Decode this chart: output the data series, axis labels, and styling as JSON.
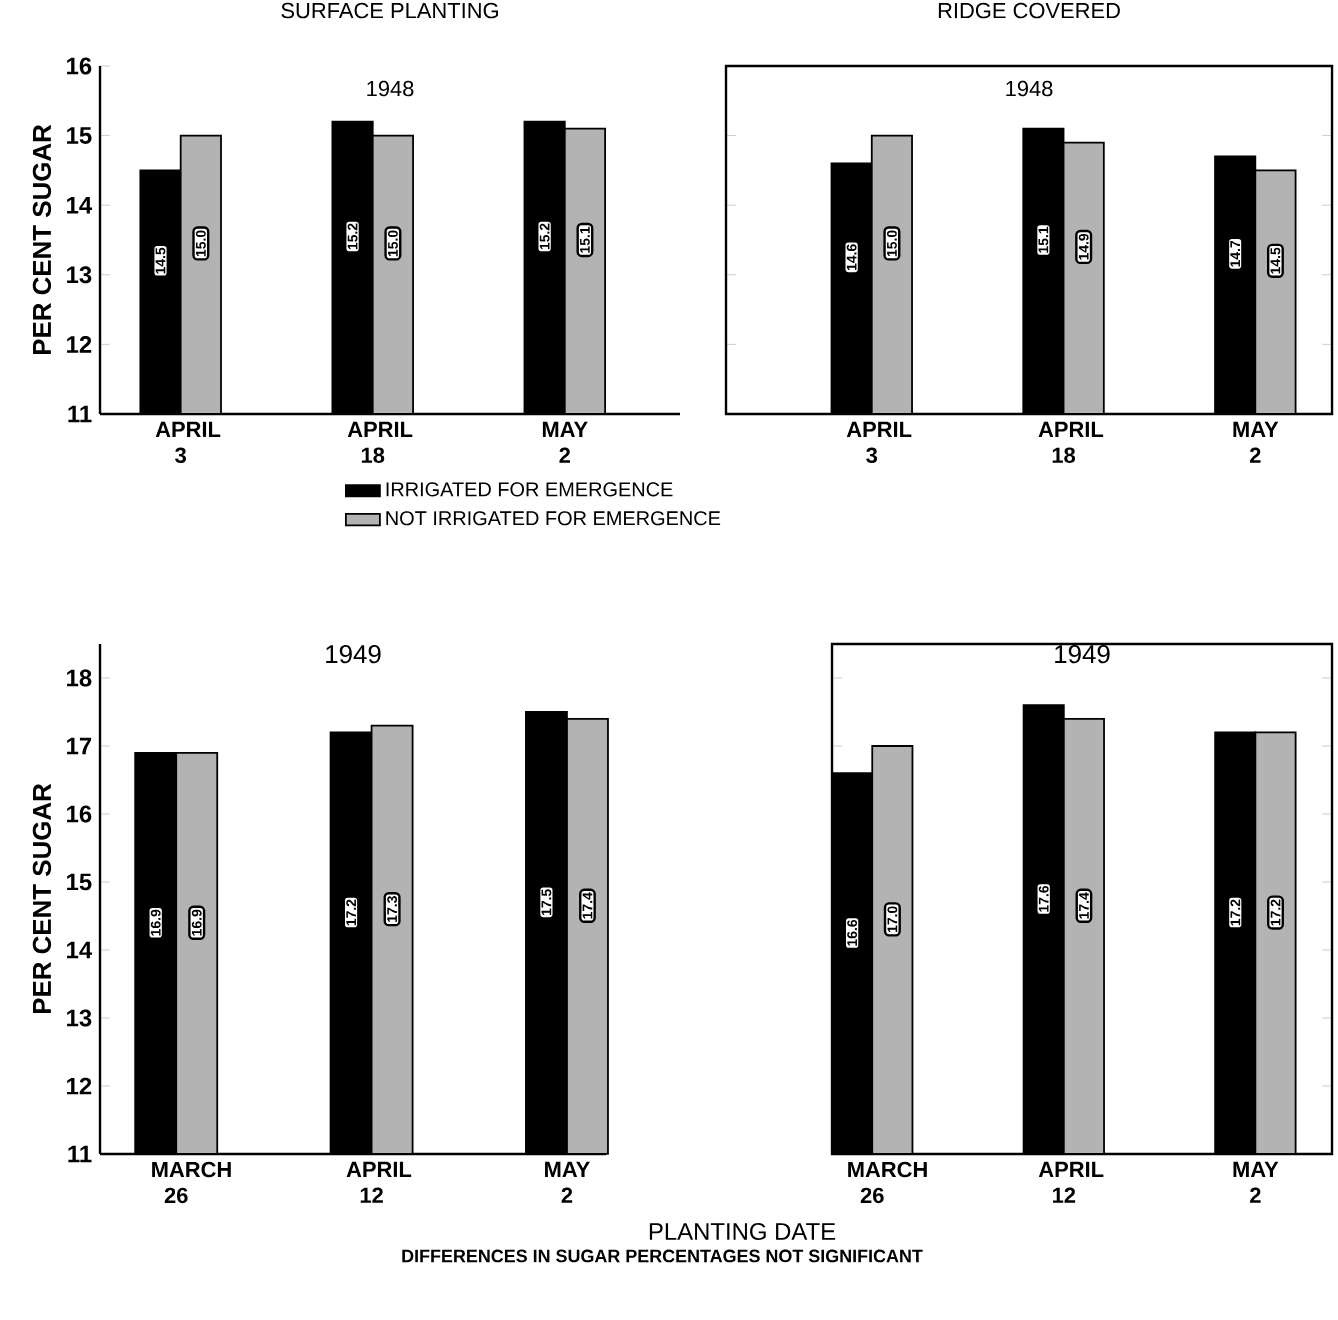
{
  "chart_data": [
    {
      "type": "bar",
      "title": "SURFACE PLANTING",
      "subtitle": "1948",
      "ylabel": "PER CENT SUGAR",
      "categories": [
        "APRIL 3",
        "APRIL 18",
        "MAY 2"
      ],
      "ylim": [
        11,
        16
      ],
      "yticks": [
        11,
        12,
        13,
        14,
        15,
        16
      ],
      "legend": "bottom",
      "series": [
        {
          "name": "IRRIGATED FOR EMERGENCE",
          "color": "#000000",
          "values": [
            14.5,
            15.2,
            15.2
          ],
          "value_labels": [
            "14.5",
            "15.2",
            "15.2"
          ]
        },
        {
          "name": "NOT IRRIGATED FOR EMERGENCE",
          "color": "#b3b3b3",
          "values": [
            15.0,
            15.0,
            15.1
          ],
          "value_labels": [
            "15.0",
            "15.0",
            "15.1"
          ]
        }
      ]
    },
    {
      "type": "bar",
      "title": "RIDGE COVERED",
      "subtitle": "1948",
      "categories": [
        "APRIL 3",
        "APRIL 18",
        "MAY 2"
      ],
      "ylim": [
        11,
        16
      ],
      "yticks": [
        11,
        12,
        13,
        14,
        15,
        16
      ],
      "tick_labels": "x",
      "series": [
        {
          "color": "#000000",
          "values": [
            14.6,
            15.1,
            14.7
          ],
          "value_labels": [
            "14.6",
            "15.1",
            "14.7"
          ]
        },
        {
          "color": "#b3b3b3",
          "values": [
            15.0,
            14.9,
            14.5
          ],
          "value_labels": [
            "15.0",
            "14.9",
            "14.5"
          ]
        }
      ]
    },
    {
      "type": "bar",
      "title": "1949",
      "ylabel": "PER CENT SUGAR",
      "categories": [
        "MARCH 26",
        "APRIL 12",
        "MAY 2"
      ],
      "ylim": [
        11,
        18.5
      ],
      "yticks": [
        11,
        12,
        13,
        14,
        15,
        16,
        17,
        18
      ],
      "series": [
        {
          "color": "#000000",
          "values": [
            16.9,
            17.2,
            17.5
          ],
          "value_labels": [
            "16.9",
            "17.2",
            "17.5"
          ]
        },
        {
          "color": "#b3b3b3",
          "values": [
            16.9,
            17.3,
            17.4
          ],
          "value_labels": [
            "16.9",
            "17.3",
            "17.4"
          ]
        }
      ]
    },
    {
      "type": "bar",
      "title": "1949",
      "xlabel": "PLANTING DATE",
      "categories": [
        "MARCH 26",
        "APRIL 12",
        "MAY 2"
      ],
      "ylim": [
        11,
        18.5
      ],
      "yticks": [
        11,
        12,
        13,
        14,
        15,
        16,
        17,
        18
      ],
      "tick_labels": "x",
      "annotations": [
        "DIFFERENCES IN SUGAR PERCENTAGES NOT SIGNIFICANT"
      ],
      "series": [
        {
          "color": "#000000",
          "values": [
            16.6,
            17.6,
            17.2
          ],
          "value_labels": [
            "16.6",
            "17.6",
            "17.2"
          ]
        },
        {
          "color": "#b3b3b3",
          "values": [
            17.0,
            17.4,
            17.2
          ],
          "value_labels": [
            "17.0",
            "17.4",
            "17.2"
          ]
        }
      ]
    }
  ]
}
